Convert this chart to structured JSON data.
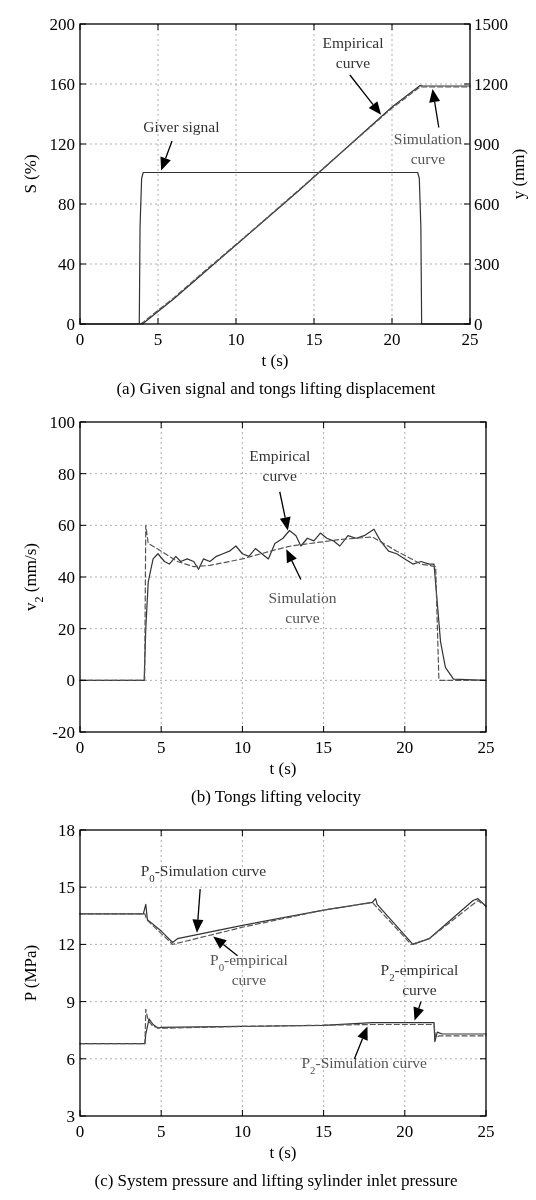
{
  "chart_data": [
    {
      "type": "line",
      "title": "(a) Given signal and tongs lifting displacement",
      "xlabel": "t (s)",
      "ylabel": "S (%)",
      "y2label": "y (mm)",
      "xlim": [
        0,
        25
      ],
      "xticks": [
        0,
        5,
        10,
        15,
        20,
        25
      ],
      "ylim": [
        0,
        200
      ],
      "yticks": [
        0,
        40,
        80,
        120,
        160,
        200
      ],
      "y2lim": [
        0,
        1500
      ],
      "y2ticks": [
        0,
        300,
        600,
        900,
        1200,
        1500
      ],
      "grid": true,
      "series": [
        {
          "name": "Giver signal",
          "color": "#333333",
          "line_style": "solid",
          "x": [
            0,
            3.8,
            3.85,
            3.95,
            4.05,
            21.65,
            21.75,
            21.85,
            21.9,
            25
          ],
          "values": [
            0,
            0,
            65,
            97,
            101,
            101,
            97,
            65,
            0,
            0
          ]
        },
        {
          "name": "Empirical curve",
          "color": "#333333",
          "line_style": "solid",
          "axis": "y2",
          "x": [
            4,
            6,
            8,
            10,
            12,
            14,
            16,
            18,
            20,
            21.8,
            22,
            25
          ],
          "values": [
            0,
            125,
            260,
            395,
            530,
            665,
            805,
            945,
            1085,
            1192,
            1190,
            1190
          ]
        },
        {
          "name": "Simulation curve",
          "color": "#555555",
          "line_style": "dashed",
          "axis": "y2",
          "x": [
            3.9,
            6,
            8,
            10,
            12,
            14,
            16,
            18,
            20,
            21.8,
            25
          ],
          "values": [
            0,
            130,
            265,
            398,
            532,
            668,
            806,
            943,
            1080,
            1185,
            1185
          ]
        }
      ]
    },
    {
      "type": "line",
      "title": "(b) Tongs lifting velocity",
      "xlabel": "t (s)",
      "ylabel": "v$_{2}$ (mm/s)",
      "xlim": [
        0,
        25
      ],
      "xticks": [
        0,
        5,
        10,
        15,
        20,
        25
      ],
      "ylim": [
        -20,
        100
      ],
      "yticks": [
        -20,
        0,
        20,
        40,
        60,
        80,
        100
      ],
      "grid": true,
      "series": [
        {
          "name": "Empirical curve",
          "color": "#333333",
          "line_style": "solid",
          "x": [
            0,
            3.95,
            4.05,
            4.2,
            4.5,
            4.8,
            5.2,
            5.5,
            5.9,
            6.2,
            6.6,
            7.0,
            7.3,
            7.6,
            8.0,
            8.4,
            8.8,
            9.2,
            9.6,
            10.0,
            10.4,
            10.8,
            11.2,
            11.6,
            12.0,
            12.5,
            12.9,
            13.3,
            13.6,
            14.0,
            14.4,
            14.8,
            15.2,
            15.6,
            16.0,
            16.5,
            17.0,
            17.5,
            18.1,
            18.5,
            19.0,
            19.5,
            20.0,
            20.5,
            21.0,
            21.5,
            21.8,
            22.0,
            22.2,
            22.5,
            23.0,
            25
          ],
          "values": [
            0,
            0,
            20,
            38,
            47,
            49,
            46,
            45,
            48,
            46,
            47,
            46,
            43,
            47,
            46,
            48,
            49,
            50,
            52,
            49,
            48,
            51,
            49,
            47,
            53,
            55,
            58,
            56,
            52,
            55,
            54,
            57,
            55,
            54,
            52,
            56,
            55,
            56,
            58.5,
            54,
            50,
            49,
            47,
            45,
            46,
            45,
            45,
            30,
            15,
            5,
            0.5,
            0
          ]
        },
        {
          "name": "Simulation curve",
          "color": "#555555",
          "line_style": "dashed",
          "x": [
            0,
            3.98,
            4.05,
            4.2,
            5,
            6,
            7,
            8,
            10,
            12,
            13,
            16,
            18,
            19.5,
            21,
            21.9,
            22.1,
            25
          ],
          "values": [
            0,
            0,
            60,
            53,
            50,
            46,
            44,
            44.5,
            47,
            50.5,
            52,
            54.5,
            55.5,
            50,
            45,
            44,
            0,
            0
          ]
        }
      ]
    },
    {
      "type": "line",
      "title": "(c) System pressure and lifting sylinder inlet pressure",
      "xlabel": "t (s)",
      "ylabel": "P (MPa)",
      "xlim": [
        0,
        25
      ],
      "xticks": [
        0,
        5,
        10,
        15,
        20,
        25
      ],
      "ylim": [
        3,
        18
      ],
      "yticks": [
        3,
        6,
        9,
        12,
        15,
        18
      ],
      "grid": true,
      "series": [
        {
          "name": "P$_{0}$-Simulation curve",
          "color": "#333333",
          "line_style": "solid",
          "x": [
            0,
            3.9,
            4.05,
            4.15,
            5,
            5.7,
            6,
            10,
            15,
            18,
            18.2,
            18.3,
            20.5,
            21.5,
            24.2,
            24.5,
            25
          ],
          "values": [
            13.6,
            13.6,
            14.1,
            13.3,
            12.7,
            12.1,
            12.3,
            13.0,
            13.8,
            14.2,
            14.4,
            14.1,
            12.0,
            12.3,
            14.3,
            14.4,
            14.0
          ]
        },
        {
          "name": "P$_{0}$-empirical curve",
          "color": "#555555",
          "line_style": "dashed",
          "x": [
            0,
            4,
            4.1,
            5.7,
            10,
            15,
            18,
            20.4,
            21.5,
            24.5,
            25
          ],
          "values": [
            13.6,
            13.6,
            13.3,
            12.0,
            12.9,
            13.8,
            14.2,
            12.0,
            12.3,
            14.3,
            14.0
          ]
        },
        {
          "name": "P$_{2}$-empirical curve",
          "color": "#333333",
          "line_style": "solid",
          "x": [
            0,
            4,
            4.05,
            4.25,
            4.5,
            4.8,
            5,
            10,
            15,
            18,
            21.8,
            21.85,
            22,
            22.3,
            25
          ],
          "values": [
            6.8,
            6.8,
            7.3,
            8.1,
            7.8,
            7.6,
            7.65,
            7.7,
            7.75,
            7.9,
            7.9,
            6.9,
            7.4,
            7.3,
            7.3
          ]
        },
        {
          "name": "P$_{2}$-Simulation curve",
          "color": "#555555",
          "line_style": "dashed",
          "x": [
            0,
            4,
            4.05,
            4.2,
            4.5,
            5,
            10,
            18,
            21.8,
            21.9,
            22.1,
            25
          ],
          "values": [
            6.8,
            6.8,
            8.6,
            8.0,
            7.7,
            7.6,
            7.7,
            7.8,
            7.8,
            7.1,
            7.2,
            7.2
          ]
        }
      ]
    }
  ]
}
